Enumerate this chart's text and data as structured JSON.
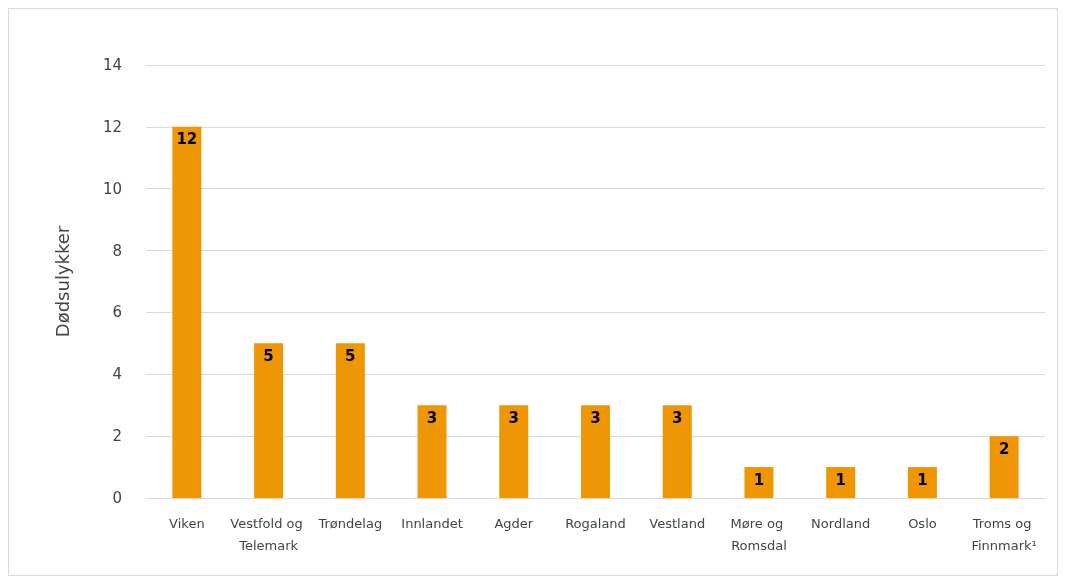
{
  "chart_data": {
    "type": "bar",
    "ylabel": "Dødsulykker",
    "categories": [
      "Viken",
      "Vestfold og Telemark",
      "Trøndelag",
      "Innlandet",
      "Agder",
      "Rogaland",
      "Vestland",
      "Møre og Romsdal",
      "Nordland",
      "Oslo",
      "Troms og Finnmark¹"
    ],
    "values": [
      12,
      5,
      5,
      3,
      3,
      3,
      3,
      1,
      1,
      1,
      2
    ],
    "color": "#ee9604",
    "ylim": [
      0,
      14
    ],
    "yticks": [
      0,
      2,
      4,
      6,
      8,
      10,
      12,
      14
    ],
    "grid": "y",
    "data_labels": true
  }
}
